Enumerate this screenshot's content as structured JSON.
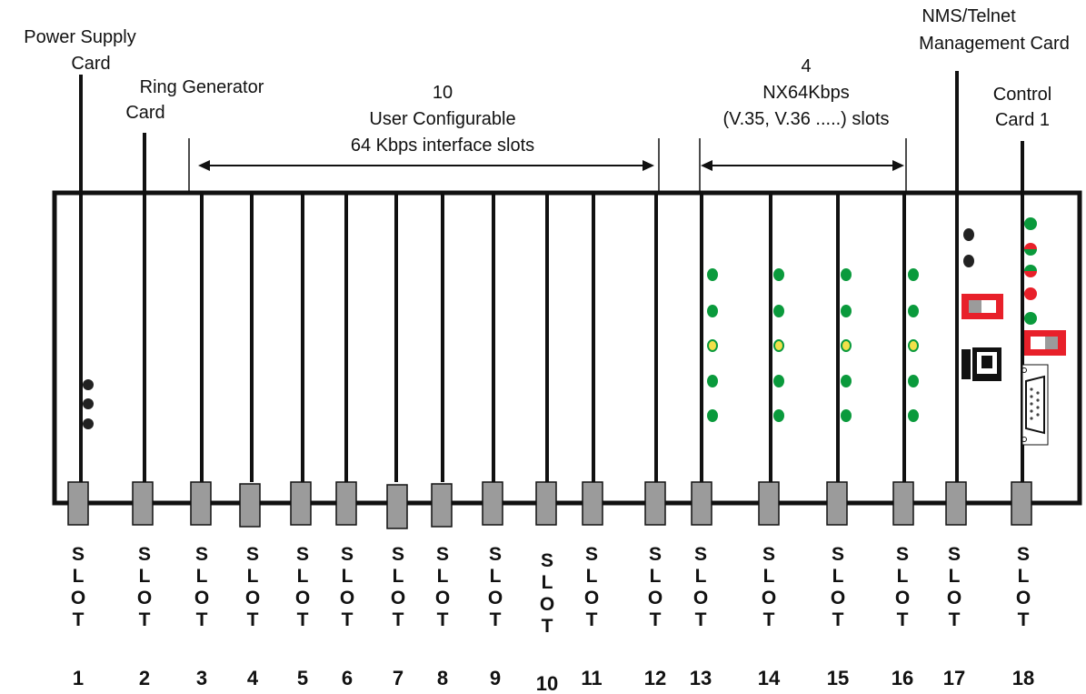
{
  "labels": {
    "power_supply": [
      "Power Supply",
      "Card"
    ],
    "ring_generator": [
      "Ring Generator",
      "Card"
    ],
    "user_configurable": [
      "10",
      "User Configurable",
      "64 Kbps interface slots"
    ],
    "nx64": [
      "4",
      "NX64Kbps",
      "(V.35, V.36 .....) slots"
    ],
    "nms": [
      "NMS/Telnet",
      "Management Card"
    ],
    "control": [
      "Control",
      "Card 1"
    ]
  },
  "slot_word_letters": [
    "S",
    "L",
    "O",
    "T"
  ],
  "slots": [
    "1",
    "2",
    "3",
    "4",
    "5",
    "6",
    "7",
    "8",
    "9",
    "10",
    "11",
    "12",
    "13",
    "14",
    "15",
    "16",
    "17",
    "18"
  ],
  "colors": {
    "led_green": "#0a9a3c",
    "led_yellow": "#f2e04a",
    "led_red": "#e8202a",
    "switch_red": "#e8202a",
    "handle_gray": "#9b9b9b",
    "line": "#111111"
  },
  "icons": [
    "double-arrow-icon",
    "led-icon",
    "dip-switch-icon",
    "rj45-port-icon",
    "db9-connector-icon",
    "toggle-button-icon"
  ]
}
